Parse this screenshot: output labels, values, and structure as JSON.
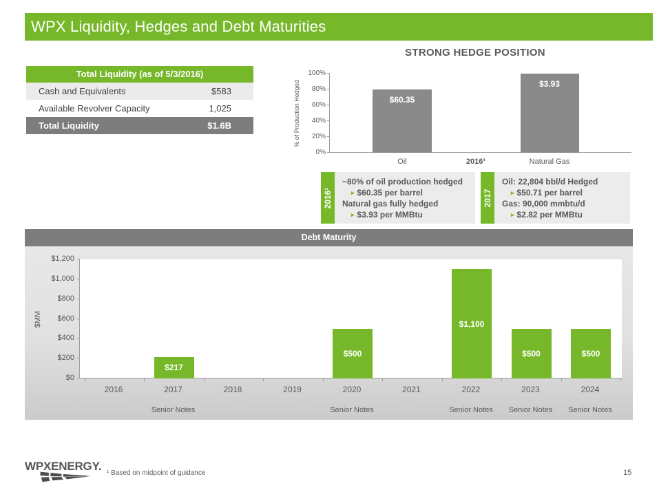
{
  "page": {
    "title": "WPX Liquidity, Hedges and Debt Maturities",
    "page_number": "15",
    "footnote": "¹ Based on midpoint of guidance",
    "logo_text": "WPXENERGY."
  },
  "colors": {
    "green": "#76b82a",
    "header_gray": "#7d7d7d",
    "bar_gray": "#8a8a8a",
    "text_gray": "#595959",
    "panel_gray": "#ececec"
  },
  "liquidity_table": {
    "header": "Total Liquidity (as of 5/3/2016)",
    "rows": [
      {
        "label": "Cash and Equivalents",
        "value": "$583"
      },
      {
        "label": "Available Revolver Capacity",
        "value": "1,025"
      },
      {
        "label": "Total Liquidity",
        "value": "$1.6B"
      }
    ]
  },
  "callouts": [
    {
      "tab": "2016¹",
      "lines": [
        {
          "text": "~80% of oil production hedged",
          "bullet": false
        },
        {
          "text": "$60.35 per barrel",
          "bullet": true
        },
        {
          "text": "Natural gas fully hedged",
          "bullet": false
        },
        {
          "text": "$3.93 per MMBtu",
          "bullet": true
        }
      ]
    },
    {
      "tab": "2017",
      "lines": [
        {
          "text": "Oil:  22,804 bbl/d Hedged",
          "bullet": false
        },
        {
          "text": "$50.71 per barrel",
          "bullet": true
        },
        {
          "text": "Gas: 90,000 mmbtu/d",
          "bullet": false
        },
        {
          "text": "$2.82 per MMBtu",
          "bullet": true
        }
      ]
    }
  ],
  "chart_data": [
    {
      "id": "hedge-position",
      "type": "bar",
      "title": "STRONG HEDGE POSITION",
      "ylabel": "% of Production Hedged",
      "ylim": [
        0,
        100
      ],
      "yticks": [
        "0%",
        "20%",
        "40%",
        "60%",
        "80%",
        "100%"
      ],
      "x_center_label": "2016¹",
      "categories": [
        "Oil",
        "Natural Gas"
      ],
      "values": [
        80,
        100
      ],
      "bar_labels": [
        "$60.35",
        "$3.93"
      ],
      "bar_color": "#8a8a8a",
      "grid": false,
      "legend": "none"
    },
    {
      "id": "debt-maturity",
      "type": "bar",
      "title": "Debt Maturity",
      "ylabel": "$MM",
      "ylim": [
        0,
        1200
      ],
      "yticks": [
        "$0",
        "$200",
        "$400",
        "$600",
        "$800",
        "$1,000",
        "$1,200"
      ],
      "categories": [
        "2016",
        "2017",
        "2018",
        "2019",
        "2020",
        "2021",
        "2022",
        "2023",
        "2024"
      ],
      "values": [
        0,
        217,
        0,
        0,
        500,
        0,
        1100,
        500,
        500
      ],
      "bar_labels": [
        "",
        "$217",
        "",
        "",
        "$500",
        "",
        "$1,100",
        "$500",
        "$500"
      ],
      "senior_notes": [
        false,
        true,
        false,
        false,
        true,
        false,
        true,
        true,
        true
      ],
      "senior_notes_label": "Senior Notes",
      "bar_color": "#76b82a",
      "grid": false,
      "legend": "none"
    }
  ]
}
